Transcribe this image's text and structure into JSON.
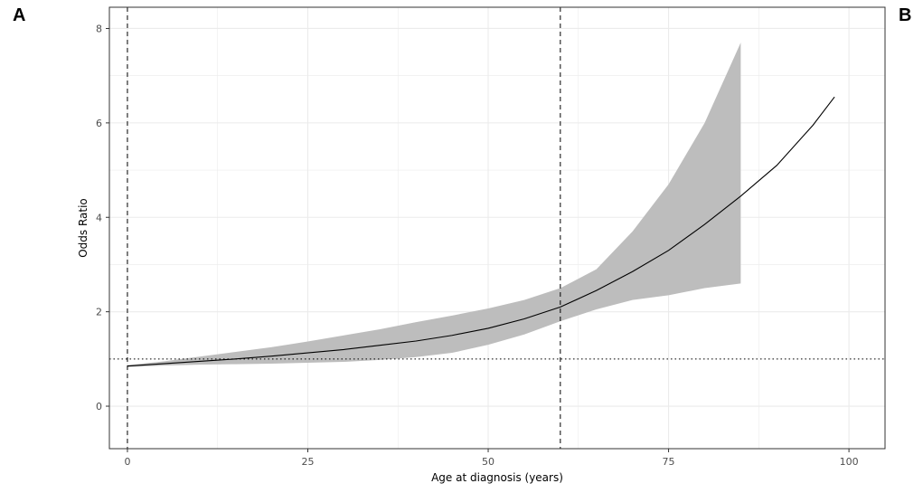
{
  "panel_labels": {
    "left": "A",
    "right": "B"
  },
  "chart_data": {
    "type": "line",
    "title": "",
    "xlabel": "Age at diagnosis (years)",
    "ylabel": "Odds Ratio",
    "xlim": [
      -2.5,
      105
    ],
    "ylim": [
      -0.9,
      8.45
    ],
    "x_ticks": [
      0,
      25,
      50,
      75,
      100
    ],
    "y_ticks": [
      0,
      2,
      4,
      6,
      8
    ],
    "x_minor": [
      12.5,
      37.5,
      62.5,
      87.5
    ],
    "y_minor": [
      1,
      3,
      5,
      7
    ],
    "grid": true,
    "legend": "none",
    "series": [
      {
        "x": [
          0,
          5,
          10,
          15,
          20,
          25,
          30,
          35,
          40,
          45,
          50,
          55,
          60,
          65,
          70,
          75,
          80,
          85,
          90,
          95,
          98
        ],
        "y": [
          0.85,
          0.9,
          0.95,
          1.0,
          1.06,
          1.13,
          1.2,
          1.29,
          1.38,
          1.5,
          1.65,
          1.85,
          2.1,
          2.45,
          2.85,
          3.3,
          3.85,
          4.45,
          5.1,
          5.95,
          6.55
        ]
      }
    ],
    "confidence_band": {
      "x": [
        0,
        5,
        10,
        15,
        20,
        25,
        30,
        35,
        40,
        45,
        50,
        55,
        60,
        65,
        70,
        75,
        80,
        85
      ],
      "lower": [
        0.83,
        0.86,
        0.88,
        0.89,
        0.9,
        0.92,
        0.94,
        0.98,
        1.04,
        1.13,
        1.3,
        1.52,
        1.8,
        2.05,
        2.25,
        2.35,
        2.5,
        2.6
      ],
      "upper": [
        0.87,
        0.95,
        1.05,
        1.15,
        1.25,
        1.37,
        1.5,
        1.63,
        1.78,
        1.92,
        2.07,
        2.25,
        2.5,
        2.9,
        3.7,
        4.7,
        6.0,
        7.7
      ]
    },
    "reference_lines": {
      "vertical_dashed": [
        0,
        60
      ],
      "horizontal_dotted": 1
    },
    "colors": {
      "line": "#000000",
      "band": "#bdbdbd",
      "grid": "#ebebeb",
      "panel_border": "#333333"
    }
  }
}
